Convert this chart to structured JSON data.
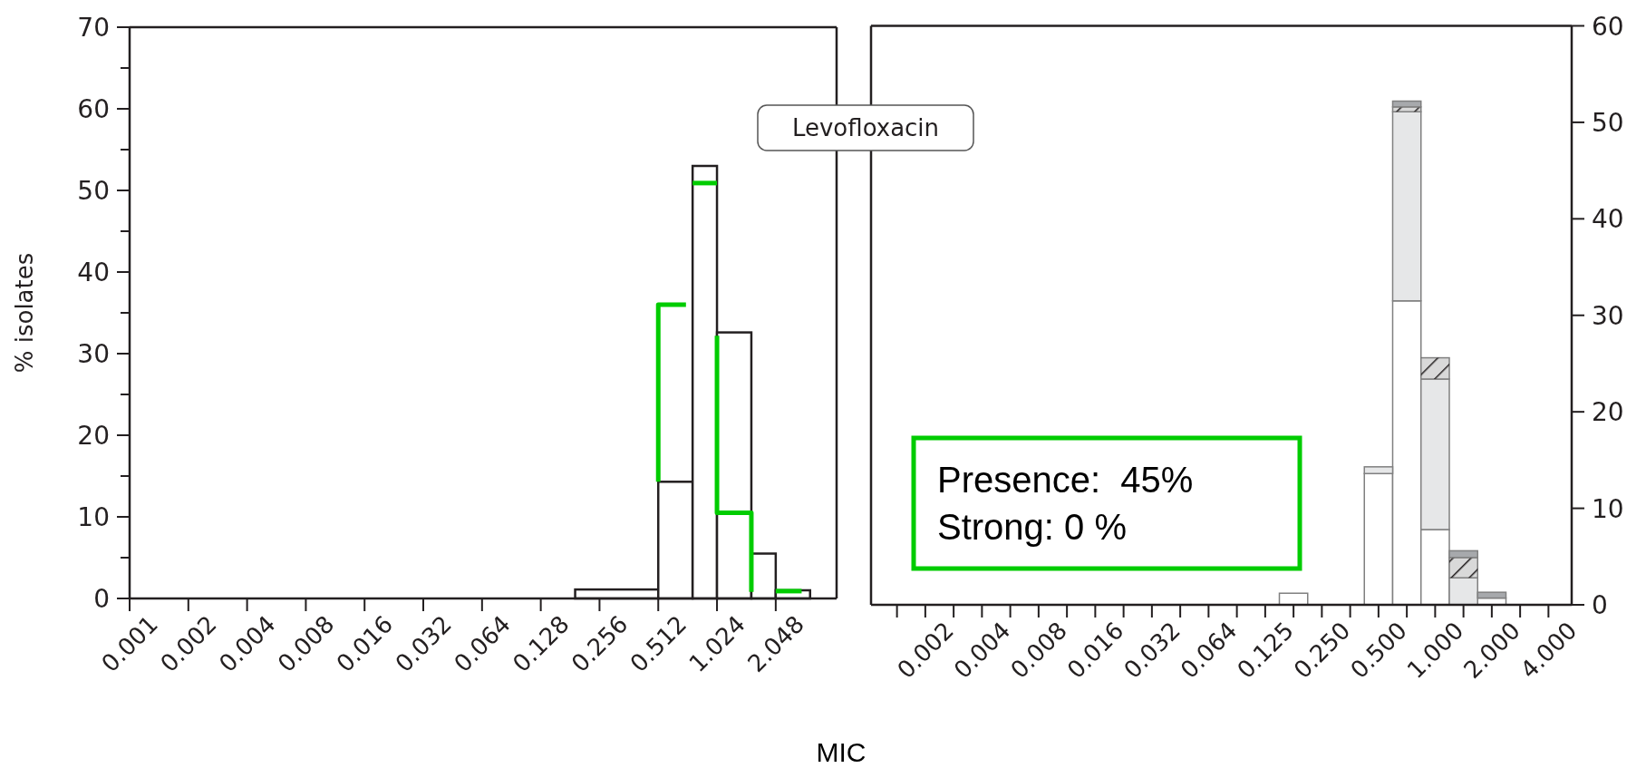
{
  "chart_data": [
    {
      "type": "histogram",
      "title": "Levofloxacin",
      "xlabel": "MIC",
      "ylabel": "% isolates",
      "log": "x",
      "xlim": [
        0.001,
        4.2
      ],
      "xticks": [
        0.001,
        0.002,
        0.004,
        0.008,
        0.016,
        0.032,
        0.064,
        0.128,
        0.256,
        0.512,
        1.024,
        2.048
      ],
      "ylim": [
        0,
        70
      ],
      "yticks": [
        0,
        {
          "value": 5,
          "label": null
        },
        10,
        {
          "value": 15,
          "label": null
        },
        20,
        {
          "value": 25,
          "label": null
        },
        30,
        {
          "value": 35,
          "label": null
        },
        40,
        {
          "value": 45,
          "label": null
        },
        50,
        {
          "value": 55,
          "label": null
        },
        60,
        {
          "value": 65,
          "label": null
        },
        70
      ],
      "series": [
        {
          "color": "#231f20",
          "bins": [
            0.192,
            0.512,
            0.768,
            1.024,
            1.536,
            2.048,
            3.072
          ],
          "values": [
            1.1,
            14.3,
            53.0,
            32.6,
            5.5,
            1.0
          ]
        },
        {
          "type": "line",
          "color": "#00cc00",
          "x": [
            0.512,
            0.512,
            0.71
          ],
          "values": [
            14.3,
            36.0,
            36.0
          ]
        },
        {
          "type": "line",
          "color": "#00cc00",
          "x": [
            0.768,
            1.024
          ],
          "values": [
            50.9,
            50.9
          ]
        },
        {
          "type": "line",
          "color": "#00cc00",
          "x": [
            1.024,
            1.024,
            1.46,
            1.536,
            1.536
          ],
          "values": [
            32.2,
            10.5,
            10.5,
            10.5,
            0.8
          ]
        },
        {
          "type": "line",
          "color": "#00cc00",
          "x": [
            2.048,
            2.78
          ],
          "values": [
            0.9,
            0.9
          ]
        }
      ]
    },
    {
      "type": "bar",
      "stacked": true,
      "annotations": [
        "Presence:  45%",
        "Strong: 0 %"
      ],
      "categories": [
        null,
        "0.002",
        null,
        "0.004",
        null,
        "0.008",
        null,
        "0.016",
        null,
        "0.032",
        null,
        "0.064",
        null,
        "0.125",
        null,
        "0.250",
        null,
        "0.500",
        null,
        "1.000",
        null,
        "2.000",
        null,
        "4.000"
      ],
      "ylim": [
        0,
        60
      ],
      "yticks": [
        0,
        10,
        20,
        30,
        40,
        50,
        60
      ],
      "series": [
        {
          "color": "#ffffff",
          "values": [
            0,
            0,
            0,
            0,
            0,
            0,
            0,
            0,
            0,
            0,
            0,
            0,
            0,
            0,
            1.2,
            0,
            0,
            13.6,
            31.5,
            7.8,
            0,
            0.7,
            0,
            0
          ]
        },
        {
          "color": "#e6e7e8",
          "values": [
            0,
            0,
            0,
            0,
            0,
            0,
            0,
            0,
            0,
            0,
            0,
            0,
            0,
            0,
            0,
            0,
            0,
            0.7,
            19.6,
            15.6,
            2.8,
            0,
            0,
            0
          ]
        },
        {
          "color": "#d9d9d9",
          "values": [
            0,
            0,
            0,
            0,
            0,
            0,
            0,
            0,
            0,
            0,
            0,
            0,
            0,
            0,
            0,
            0,
            0,
            0,
            0.5,
            2.2,
            2.1,
            0,
            0,
            0
          ]
        },
        {
          "color": "#a7a9ac",
          "values": [
            0,
            0,
            0,
            0,
            0,
            0,
            0,
            0,
            0,
            0,
            0,
            0,
            0,
            0,
            0,
            0,
            0,
            0,
            0.6,
            0,
            0.7,
            0.6,
            0,
            0
          ]
        }
      ]
    }
  ]
}
